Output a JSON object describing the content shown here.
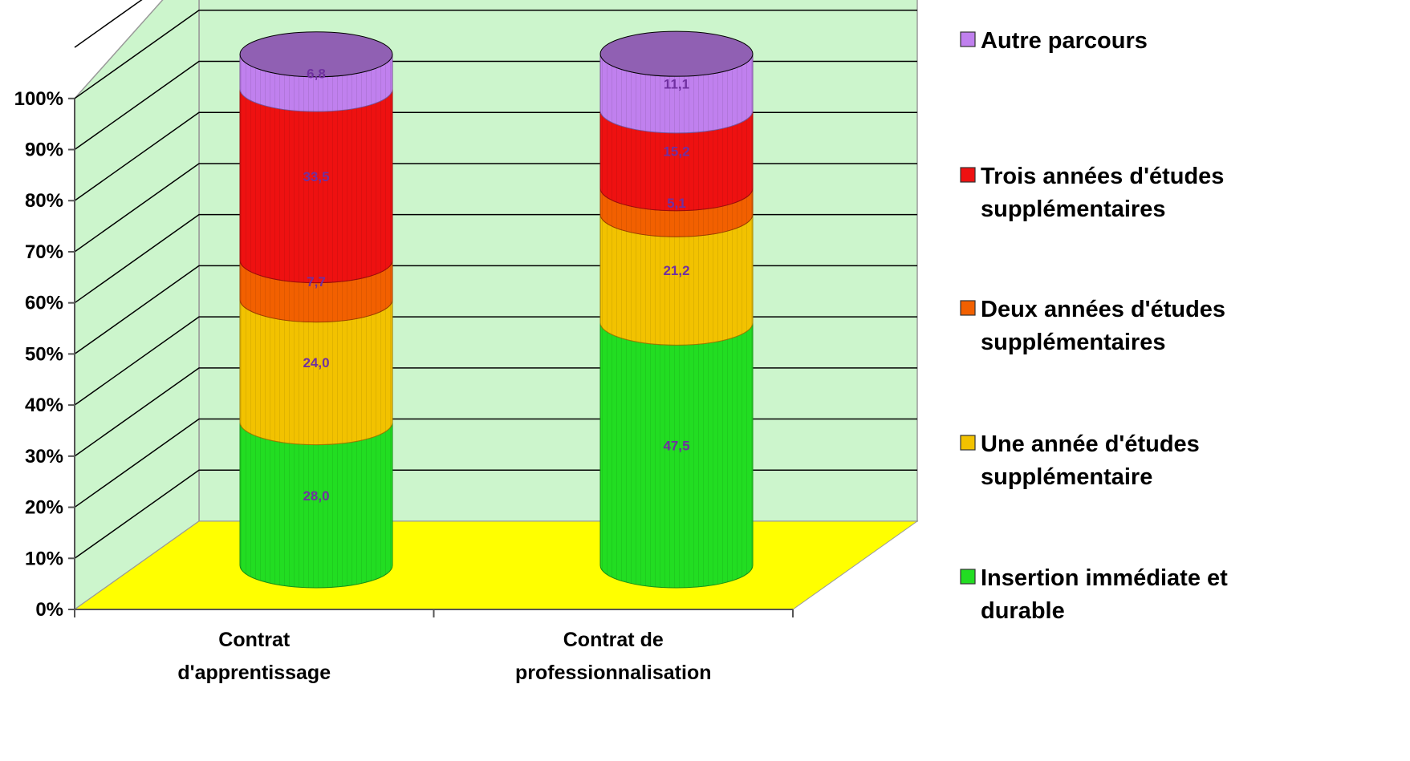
{
  "chart_data": {
    "type": "bar",
    "stacked": true,
    "variant": "3d-cylinder",
    "categories": [
      "Contrat d'apprentissage",
      "Contrat de professionnalisation"
    ],
    "category_lines": [
      [
        "Contrat",
        "d'apprentissage"
      ],
      [
        "Contrat de",
        "professionnalisation"
      ]
    ],
    "series": [
      {
        "name": "Insertion immédiate et durable",
        "legend_lines": [
          "Insertion immédiate et",
          "durable"
        ],
        "values": [
          28.0,
          47.5
        ],
        "labels": [
          "28,0",
          "47,5"
        ],
        "color": "#22dd22"
      },
      {
        "name": "Une année d'études supplémentaire",
        "legend_lines": [
          "Une année d'études",
          "supplémentaire"
        ],
        "values": [
          24.0,
          21.2
        ],
        "labels": [
          "24,0",
          "21,2"
        ],
        "color": "#f2c200"
      },
      {
        "name": "Deux années d'études supplémentaires",
        "legend_lines": [
          "Deux années d'études",
          "supplémentaires"
        ],
        "values": [
          7.7,
          5.1
        ],
        "labels": [
          "7,7",
          "5,1"
        ],
        "color": "#f26000"
      },
      {
        "name": "Trois années d'études supplémentaires",
        "legend_lines": [
          "Trois années d'études",
          "supplémentaires"
        ],
        "values": [
          33.5,
          15.2
        ],
        "labels": [
          "33,5",
          "15,2"
        ],
        "color": "#ee1111"
      },
      {
        "name": "Autre parcours",
        "legend_lines": [
          "Autre parcours"
        ],
        "values": [
          6.8,
          11.1
        ],
        "labels": [
          "6,8",
          "11,1"
        ],
        "color": "#c080ee"
      }
    ],
    "y_ticks": [
      "0%",
      "10%",
      "20%",
      "30%",
      "40%",
      "50%",
      "60%",
      "70%",
      "80%",
      "90%",
      "100%"
    ],
    "ylim": [
      0,
      100
    ],
    "grid": true,
    "legend_position": "right",
    "wall_color": "#ccf5cc",
    "floor_color": "#ffff00",
    "data_label_color": "#7030a0"
  }
}
